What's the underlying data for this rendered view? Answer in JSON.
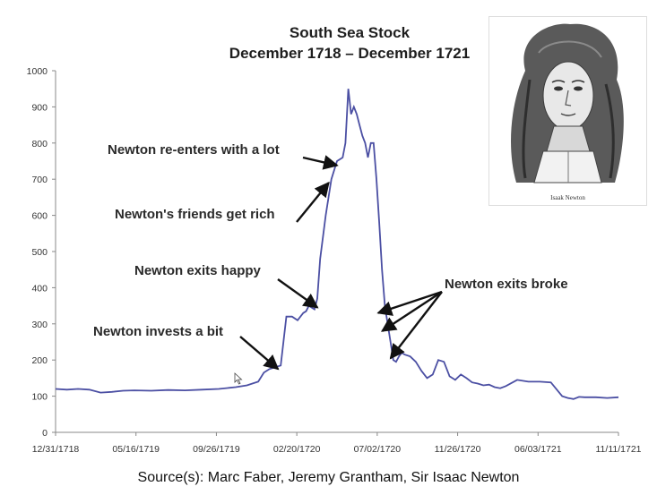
{
  "chart_data": {
    "type": "line",
    "title": "South Sea Stock",
    "subtitle": "December 1718 – December 1721",
    "xlabel": "",
    "ylabel": "",
    "ylim": [
      0,
      1000
    ],
    "yticks": [
      0,
      100,
      200,
      300,
      400,
      500,
      600,
      700,
      800,
      900,
      1000
    ],
    "xtick_labels": [
      "12/31/1718",
      "05/16/1719",
      "09/26/1719",
      "02/20/1720",
      "07/02/1720",
      "11/26/1720",
      "06/03/1721",
      "11/11/1721"
    ],
    "grid": false,
    "color": "#4b4fa3",
    "series": [
      {
        "x": [
          0,
          0.02,
          0.04,
          0.06,
          0.08,
          0.1,
          0.12,
          0.14,
          0.17,
          0.2,
          0.23,
          0.26,
          0.29,
          0.32,
          0.34,
          0.36,
          0.37,
          0.38,
          0.39,
          0.4,
          0.41,
          0.42,
          0.43,
          0.44,
          0.445,
          0.45,
          0.455,
          0.46,
          0.465,
          0.47,
          0.48,
          0.49,
          0.5,
          0.51,
          0.515,
          0.52,
          0.525,
          0.53,
          0.535,
          0.54,
          0.545,
          0.55,
          0.555,
          0.56,
          0.565,
          0.57,
          0.575,
          0.58,
          0.585,
          0.59,
          0.595,
          0.6,
          0.605,
          0.61,
          0.615,
          0.62,
          0.63,
          0.64,
          0.65,
          0.66,
          0.67,
          0.68,
          0.69,
          0.7,
          0.71,
          0.72,
          0.73,
          0.74,
          0.75,
          0.76,
          0.77,
          0.78,
          0.79,
          0.8,
          0.82,
          0.84,
          0.86,
          0.88,
          0.9,
          0.91,
          0.92,
          0.93,
          0.94,
          0.96,
          0.98,
          1.0
        ],
        "y": [
          120,
          118,
          120,
          118,
          110,
          112,
          115,
          116,
          115,
          117,
          116,
          118,
          120,
          125,
          130,
          140,
          165,
          175,
          180,
          185,
          320,
          320,
          310,
          330,
          335,
          350,
          345,
          340,
          370,
          480,
          600,
          700,
          750,
          760,
          800,
          950,
          880,
          900,
          880,
          850,
          820,
          800,
          760,
          800,
          800,
          700,
          580,
          450,
          350,
          300,
          250,
          200,
          195,
          210,
          220,
          215,
          210,
          195,
          170,
          150,
          160,
          200,
          195,
          155,
          145,
          160,
          150,
          138,
          135,
          130,
          132,
          125,
          122,
          128,
          145,
          140,
          140,
          138,
          100,
          95,
          92,
          98,
          97,
          97,
          95,
          97
        ]
      }
    ],
    "annotations": [
      "Newton re-enters with a lot",
      "Newton's friends get rich",
      "Newton exits happy",
      "Newton invests a bit",
      "Newton exits broke"
    ]
  },
  "portrait": {
    "icon": "newton-portrait-icon",
    "caption": "Isaak Newton"
  },
  "source": "Source(s): Marc Faber, Jeremy Grantham, Sir Isaac Newton"
}
